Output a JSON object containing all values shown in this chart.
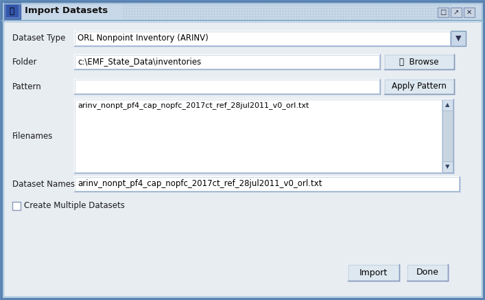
{
  "title": "Import Datasets",
  "bg_color": "#dde3eb",
  "dialog_bg": "#e8edf2",
  "titlebar_bg": "#c8d8e8",
  "titlebar_text": "Import Datasets",
  "field_bg": "white",
  "button_bg": "#e0e8f0",
  "outer_border_color": "#5a82b0",
  "inner_border_color": "#8ab0d0",
  "labels": [
    "Dataset Type",
    "Folder",
    "Pattern",
    "Filenames",
    "Dataset Names"
  ],
  "dataset_type_value": "ORL Nonpoint Inventory (ARINV)",
  "folder_value": "c:\\EMF_State_Data\\inventories",
  "pattern_value": "",
  "filenames_value": "arinv_nonpt_pf4_cap_nopfc_2017ct_ref_28jul2011_v0_orl.txt",
  "dataset_names_value": "arinv_nonpt_pf4_cap_nopfc_2017ct_ref_28jul2011_v0_orl.txt",
  "checkbox_label": "Create Multiple Datasets",
  "button_browse": "⎙  Browse",
  "button_apply": "Apply Pattern",
  "button_import": "Import",
  "button_done": "Done",
  "text_color": "#000000",
  "label_color": "#1a1a1a",
  "scrollbar_color": "#c8d4e0",
  "titlebar_dots_color": "#a0bcd0"
}
